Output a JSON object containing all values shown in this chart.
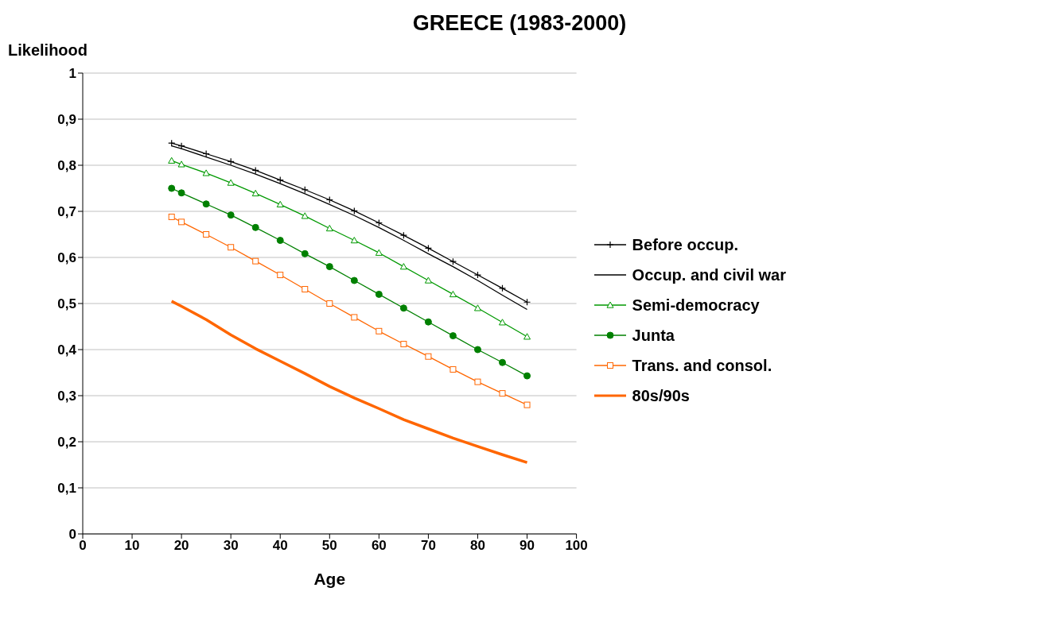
{
  "chart_data": {
    "type": "line",
    "title": "GREECE (1983-2000)",
    "xlabel": "Age",
    "ylabel": "Likelihood",
    "x": [
      18,
      20,
      25,
      30,
      35,
      40,
      45,
      50,
      55,
      60,
      65,
      70,
      75,
      80,
      85,
      90
    ],
    "xlim": [
      0,
      100
    ],
    "xticks": [
      0,
      10,
      20,
      30,
      40,
      50,
      60,
      70,
      80,
      90,
      100
    ],
    "ylim": [
      0,
      1
    ],
    "yticks": [
      {
        "value": 0,
        "label": "0"
      },
      {
        "value": 0.1,
        "label": "0,1"
      },
      {
        "value": 0.2,
        "label": "0,2"
      },
      {
        "value": 0.3,
        "label": "0,3"
      },
      {
        "value": 0.4,
        "label": "0,4"
      },
      {
        "value": 0.5,
        "label": "0,5"
      },
      {
        "value": 0.6,
        "label": "0,6"
      },
      {
        "value": 0.7,
        "label": "0,7"
      },
      {
        "value": 0.8,
        "label": "0,8"
      },
      {
        "value": 0.9,
        "label": "0,9"
      },
      {
        "value": 1,
        "label": "1"
      }
    ],
    "grid": "y",
    "legend": "right",
    "line_style": "solid",
    "series": [
      {
        "name": "Before occup.",
        "color": "#000000",
        "marker": "cross",
        "values": [
          0.848,
          0.842,
          0.825,
          0.808,
          0.789,
          0.768,
          0.747,
          0.725,
          0.701,
          0.675,
          0.648,
          0.62,
          0.591,
          0.562,
          0.533,
          0.503
        ]
      },
      {
        "name": "Occup. and civil war",
        "color": "#000000",
        "marker": "none",
        "values": [
          0.842,
          0.836,
          0.818,
          0.8,
          0.781,
          0.76,
          0.738,
          0.715,
          0.691,
          0.665,
          0.637,
          0.608,
          0.58,
          0.55,
          0.518,
          0.487
        ]
      },
      {
        "name": "Semi-democracy",
        "color": "#009900",
        "marker": "triangle",
        "values": [
          0.81,
          0.802,
          0.783,
          0.762,
          0.739,
          0.715,
          0.69,
          0.663,
          0.637,
          0.61,
          0.58,
          0.55,
          0.52,
          0.49,
          0.459,
          0.428
        ]
      },
      {
        "name": "Junta",
        "color": "#008000",
        "marker": "circle",
        "values": [
          0.75,
          0.74,
          0.716,
          0.692,
          0.665,
          0.637,
          0.608,
          0.58,
          0.55,
          0.52,
          0.49,
          0.46,
          0.43,
          0.4,
          0.372,
          0.343
        ]
      },
      {
        "name": "Trans. and consol.",
        "color": "#ff6600",
        "marker": "square",
        "values": [
          0.688,
          0.677,
          0.65,
          0.622,
          0.592,
          0.562,
          0.531,
          0.5,
          0.47,
          0.44,
          0.412,
          0.385,
          0.357,
          0.33,
          0.305,
          0.28
        ]
      },
      {
        "name": "80s/90s",
        "color": "#ff6600",
        "marker": "none",
        "values": [
          0.505,
          0.494,
          0.465,
          0.432,
          0.402,
          0.375,
          0.348,
          0.32,
          0.295,
          0.272,
          0.248,
          0.228,
          0.208,
          0.19,
          0.172,
          0.155
        ]
      }
    ]
  }
}
